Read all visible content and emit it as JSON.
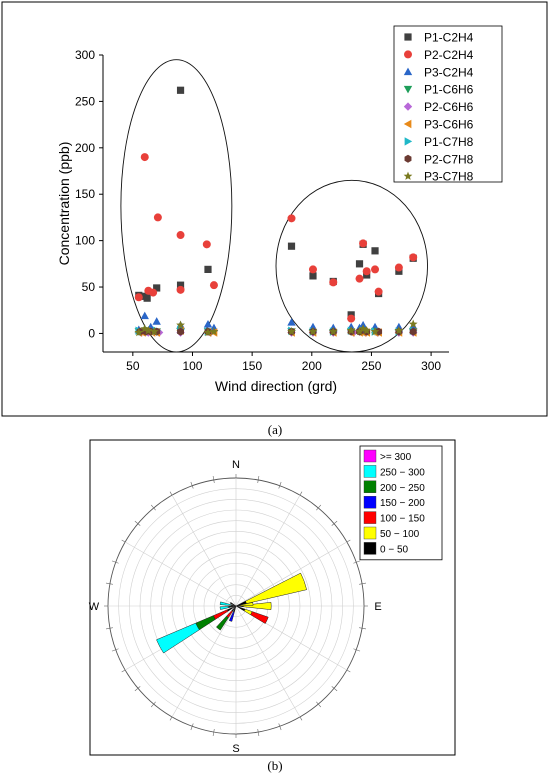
{
  "figure": {
    "caption_a": "(a)",
    "caption_b": "(b)"
  },
  "chart_data": [
    {
      "type": "scatter",
      "xlabel": "Wind direction (grd)",
      "ylabel": "Concentration (ppb)",
      "xlim": [
        25,
        315
      ],
      "ylim": [
        -20,
        300
      ],
      "xticks": [
        50,
        100,
        150,
        200,
        250,
        300
      ],
      "yticks": [
        0,
        50,
        100,
        150,
        200,
        250,
        300
      ],
      "grid": false,
      "legend_position": "top-right",
      "series": [
        {
          "name": "P1-C2H4",
          "color": "#404040",
          "marker": "square",
          "points": [
            [
              55,
              41
            ],
            [
              60,
              40
            ],
            [
              62,
              38
            ],
            [
              70,
              49
            ],
            [
              90,
              262
            ],
            [
              90,
              52
            ],
            [
              113,
              69
            ],
            [
              183,
              94
            ],
            [
              201,
              62
            ],
            [
              218,
              56
            ],
            [
              233,
              20
            ],
            [
              240,
              75
            ],
            [
              243,
              96
            ],
            [
              246,
              63
            ],
            [
              253,
              89
            ],
            [
              256,
              43
            ],
            [
              273,
              67
            ],
            [
              285,
              81
            ]
          ]
        },
        {
          "name": "P2-C2H4",
          "color": "#e8403a",
          "marker": "circle",
          "points": [
            [
              55,
              39
            ],
            [
              60,
              190
            ],
            [
              63,
              46
            ],
            [
              67,
              44
            ],
            [
              71,
              125
            ],
            [
              90,
              106
            ],
            [
              90,
              47
            ],
            [
              112,
              96
            ],
            [
              118,
              52
            ],
            [
              183,
              124
            ],
            [
              201,
              69
            ],
            [
              218,
              55
            ],
            [
              233,
              16
            ],
            [
              240,
              59
            ],
            [
              243,
              97
            ],
            [
              246,
              67
            ],
            [
              253,
              69
            ],
            [
              256,
              45
            ],
            [
              273,
              71
            ],
            [
              285,
              82
            ]
          ]
        },
        {
          "name": "P3-C2H4",
          "color": "#2a66c8",
          "marker": "triangle-up",
          "points": [
            [
              55,
              4
            ],
            [
              60,
              19
            ],
            [
              65,
              7
            ],
            [
              70,
              13
            ],
            [
              90,
              9
            ],
            [
              113,
              10
            ],
            [
              118,
              6
            ],
            [
              183,
              12
            ],
            [
              201,
              7
            ],
            [
              218,
              6
            ],
            [
              233,
              7
            ],
            [
              240,
              6
            ],
            [
              243,
              9
            ],
            [
              253,
              7
            ],
            [
              273,
              7
            ],
            [
              285,
              8
            ]
          ]
        },
        {
          "name": "P1-C6H6",
          "color": "#1e9e5a",
          "marker": "triangle-down",
          "points": [
            [
              55,
              2
            ],
            [
              62,
              2
            ],
            [
              70,
              2
            ],
            [
              90,
              2
            ],
            [
              113,
              2
            ],
            [
              183,
              2
            ],
            [
              201,
              1
            ],
            [
              218,
              1
            ],
            [
              233,
              2
            ],
            [
              243,
              2
            ],
            [
              253,
              2
            ],
            [
              273,
              1
            ],
            [
              285,
              2
            ]
          ]
        },
        {
          "name": "P2-C6H6",
          "color": "#b868d8",
          "marker": "diamond",
          "points": [
            [
              57,
              1
            ],
            [
              63,
              1
            ],
            [
              72,
              1
            ],
            [
              90,
              1
            ],
            [
              115,
              1
            ],
            [
              183,
              1
            ],
            [
              201,
              1
            ],
            [
              218,
              1
            ],
            [
              235,
              1
            ],
            [
              245,
              1
            ],
            [
              255,
              1
            ],
            [
              273,
              1
            ],
            [
              285,
              1
            ]
          ]
        },
        {
          "name": "P3-C6H6",
          "color": "#e88a1a",
          "marker": "triangle-left",
          "points": [
            [
              55,
              1
            ],
            [
              58,
              1
            ],
            [
              62,
              2
            ],
            [
              66,
              1
            ],
            [
              70,
              1
            ],
            [
              90,
              3
            ],
            [
              113,
              1
            ],
            [
              118,
              1
            ],
            [
              183,
              1
            ],
            [
              201,
              1
            ],
            [
              218,
              1
            ],
            [
              233,
              1
            ],
            [
              240,
              1
            ],
            [
              243,
              1
            ],
            [
              246,
              1
            ],
            [
              253,
              1
            ],
            [
              256,
              1
            ],
            [
              273,
              1
            ],
            [
              285,
              1
            ]
          ]
        },
        {
          "name": "P1-C7H8",
          "color": "#20b8c8",
          "marker": "triangle-right",
          "points": [
            [
              55,
              3
            ],
            [
              62,
              4
            ],
            [
              70,
              3
            ],
            [
              90,
              4
            ],
            [
              113,
              2
            ],
            [
              183,
              3
            ],
            [
              201,
              2
            ],
            [
              218,
              2
            ],
            [
              233,
              3
            ],
            [
              243,
              3
            ],
            [
              253,
              2
            ],
            [
              273,
              2
            ],
            [
              285,
              3
            ]
          ]
        },
        {
          "name": "P2-C7H8",
          "color": "#6b3a32",
          "marker": "hexagon",
          "points": [
            [
              56,
              2
            ],
            [
              61,
              2
            ],
            [
              65,
              2
            ],
            [
              70,
              2
            ],
            [
              90,
              2
            ],
            [
              113,
              2
            ],
            [
              183,
              2
            ],
            [
              201,
              2
            ],
            [
              218,
              2
            ],
            [
              233,
              2
            ],
            [
              240,
              2
            ],
            [
              246,
              2
            ],
            [
              256,
              2
            ],
            [
              273,
              2
            ],
            [
              285,
              2
            ]
          ]
        },
        {
          "name": "P3-C7H8",
          "color": "#7a7a20",
          "marker": "star",
          "points": [
            [
              55,
              1
            ],
            [
              60,
              5
            ],
            [
              63,
              3
            ],
            [
              68,
              2
            ],
            [
              90,
              9
            ],
            [
              113,
              1
            ],
            [
              118,
              2
            ],
            [
              183,
              2
            ],
            [
              201,
              2
            ],
            [
              218,
              2
            ],
            [
              233,
              3
            ],
            [
              240,
              2
            ],
            [
              243,
              5
            ],
            [
              246,
              3
            ],
            [
              253,
              2
            ],
            [
              273,
              3
            ],
            [
              285,
              10
            ]
          ]
        }
      ],
      "annotations": [
        {
          "shape": "ellipse",
          "x_range": [
            40,
            133
          ],
          "y_range": [
            -20,
            295
          ]
        },
        {
          "shape": "ellipse",
          "x_range": [
            170,
            297
          ],
          "y_range": [
            -20,
            165
          ]
        }
      ]
    },
    {
      "type": "wind-rose",
      "directions": [
        "N",
        "E",
        "S",
        "W"
      ],
      "bins": [
        ">= 300",
        "250 − 300",
        "200 − 250",
        "150 − 200",
        "100 − 150",
        "50 − 100",
        "0 − 50"
      ],
      "bin_colors": [
        "#ff00ff",
        "#00ffff",
        "#008000",
        "#0000ff",
        "#ff0000",
        "#ffff00",
        "#000000"
      ],
      "legend_position": "top-right",
      "r_max": 12,
      "rings": 12,
      "petals": [
        {
          "direction": 70,
          "width": 14,
          "stack": [
            {
              "bin": "0 − 50",
              "value": 1.0
            },
            {
              "bin": "50 − 100",
              "value": 5.8
            }
          ]
        },
        {
          "direction": 90,
          "width": 12,
          "stack": [
            {
              "bin": "0 − 50",
              "value": 0.7
            },
            {
              "bin": "50 − 100",
              "value": 2.6
            }
          ]
        },
        {
          "direction": 83,
          "width": 10,
          "stack": [
            {
              "bin": "0 − 50",
              "value": 0.4
            },
            {
              "bin": "50 − 100",
              "value": 1.2
            }
          ]
        },
        {
          "direction": 115,
          "width": 12,
          "stack": [
            {
              "bin": "0 − 50",
              "value": 0.9
            },
            {
              "bin": "50 − 100",
              "value": 0.7
            },
            {
              "bin": "100 − 150",
              "value": 1.6
            }
          ]
        },
        {
          "direction": 200,
          "width": 10,
          "stack": [
            {
              "bin": "0 − 50",
              "value": 0.6
            },
            {
              "bin": "150 − 200",
              "value": 0.9
            }
          ]
        },
        {
          "direction": 218,
          "width": 10,
          "stack": [
            {
              "bin": "0 − 50",
              "value": 0.6
            },
            {
              "bin": "100 − 150",
              "value": 0.7
            },
            {
              "bin": "200 − 250",
              "value": 1.4
            }
          ]
        },
        {
          "direction": 242,
          "width": 10,
          "stack": [
            {
              "bin": "0 − 50",
              "value": 0.9
            },
            {
              "bin": "100 − 150",
              "value": 1.4
            },
            {
              "bin": "200 − 250",
              "value": 1.8
            },
            {
              "bin": "250 − 300",
              "value": 4.0
            }
          ]
        },
        {
          "direction": 262,
          "width": 10,
          "stack": [
            {
              "bin": "0 − 50",
              "value": 0.7
            },
            {
              "bin": "250 − 300",
              "value": 0.8
            }
          ]
        },
        {
          "direction": 280,
          "width": 10,
          "stack": [
            {
              "bin": "0 − 50",
              "value": 0.5
            },
            {
              "bin": "250 − 300",
              "value": 1.0
            }
          ]
        },
        {
          "direction": 300,
          "width": 10,
          "stack": [
            {
              "bin": "0 − 50",
              "value": 0.6
            }
          ]
        }
      ]
    }
  ]
}
